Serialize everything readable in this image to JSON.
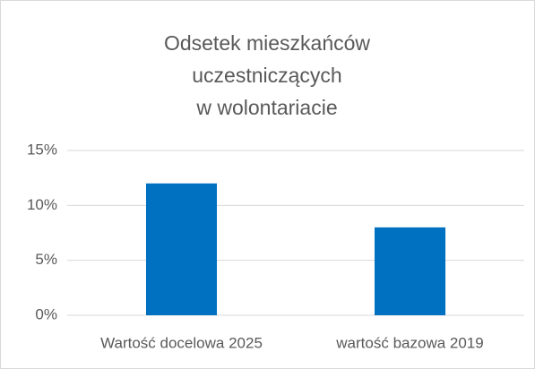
{
  "chart_data": {
    "type": "bar",
    "title": [
      "Odsetek mieszkańców",
      "uczestniczących",
      "w wolontariacie"
    ],
    "categories": [
      "Wartość docelowa 2025",
      "wartość bazowa 2019"
    ],
    "values": [
      12,
      8
    ],
    "color": "#0070c0",
    "ylim": [
      0,
      15
    ],
    "yticks": [
      {
        "value": 0,
        "label": "0%"
      },
      {
        "value": 5,
        "label": "5%"
      },
      {
        "value": 10,
        "label": "10%"
      },
      {
        "value": 15,
        "label": "15%"
      }
    ],
    "grid": true
  }
}
